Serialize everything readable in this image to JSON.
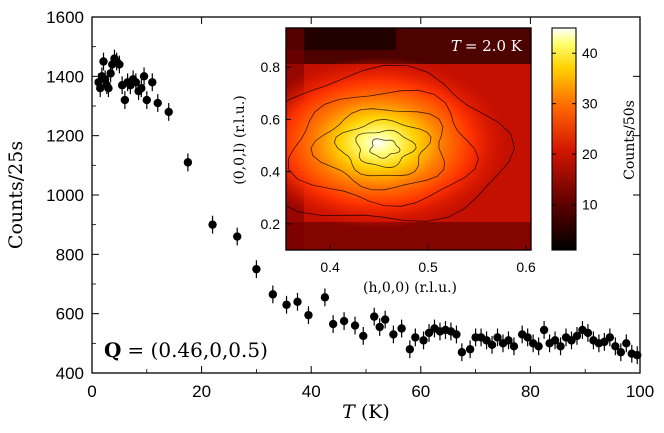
{
  "chart_data": [
    {
      "type": "scatter",
      "xlabel_var": "T",
      "xlabel_unit": "(K)",
      "ylabel": "Counts/25s",
      "xlim": [
        0,
        100
      ],
      "ylim": [
        400,
        1600
      ],
      "xticks": [
        "0",
        "20",
        "40",
        "60",
        "80",
        "100"
      ],
      "yticks": [
        "400",
        "600",
        "800",
        "1000",
        "1200",
        "1400",
        "1600"
      ],
      "annotation": {
        "symbol": "Q",
        "value": "= (0.46,0,0.5)"
      },
      "error_bar": 30,
      "x": [
        1.2,
        1.5,
        1.8,
        2.1,
        2.4,
        2.7,
        3.0,
        3.4,
        3.7,
        4.1,
        4.5,
        5.0,
        5.5,
        6.0,
        6.5,
        7.0,
        7.5,
        8.0,
        8.5,
        9.0,
        9.5,
        10.0,
        11.0,
        12.0,
        14.0,
        17.5,
        22.0,
        26.5,
        30.0,
        33.0,
        35.5,
        37.5,
        39.5,
        42.5,
        44.0,
        46.0,
        48.0,
        49.5,
        51.5,
        52.5,
        53.5,
        55.0,
        56.5,
        58.0,
        59.0,
        60.5,
        61.5,
        62.5,
        63.5,
        64.5,
        65.5,
        66.5,
        67.5,
        69.0,
        70.0,
        71.0,
        72.0,
        73.0,
        74.0,
        75.0,
        76.0,
        77.0,
        78.5,
        79.5,
        80.5,
        81.5,
        82.5,
        83.5,
        84.5,
        85.5,
        86.5,
        87.5,
        88.5,
        89.5,
        90.5,
        91.5,
        92.5,
        93.5,
        94.5,
        95.5,
        96.5,
        97.5,
        98.5,
        99.5
      ],
      "y": [
        1380,
        1360,
        1400,
        1450,
        1390,
        1370,
        1360,
        1410,
        1440,
        1460,
        1450,
        1440,
        1370,
        1320,
        1380,
        1370,
        1390,
        1380,
        1350,
        1360,
        1400,
        1320,
        1380,
        1310,
        1280,
        1110,
        900,
        860,
        750,
        665,
        630,
        640,
        595,
        655,
        565,
        575,
        560,
        525,
        590,
        555,
        580,
        530,
        550,
        480,
        520,
        510,
        535,
        550,
        540,
        545,
        540,
        530,
        470,
        480,
        520,
        520,
        510,
        495,
        520,
        500,
        510,
        490,
        530,
        520,
        500,
        490,
        545,
        500,
        510,
        490,
        520,
        510,
        525,
        545,
        535,
        510,
        500,
        505,
        520,
        490,
        470,
        500,
        465,
        460
      ]
    },
    {
      "type": "heatmap",
      "title_var": "T",
      "title_value": "= 2.0 K",
      "xlabel": "(h,0,0) (r.l.u.)",
      "ylabel": "(0,0,l) (r.l.u.)",
      "xlim": [
        0.355,
        0.605
      ],
      "ylim": [
        0.1,
        0.95
      ],
      "xticks": [
        "0.4",
        "0.5",
        "0.6"
      ],
      "yticks": [
        "0.2",
        "0.4",
        "0.6",
        "0.8"
      ],
      "peak": {
        "h": 0.455,
        "l": 0.49,
        "counts": 44
      },
      "colorbar": {
        "label": "Counts/50s",
        "ticks": [
          "10",
          "20",
          "30",
          "40"
        ],
        "range": [
          1,
          45
        ]
      }
    }
  ]
}
